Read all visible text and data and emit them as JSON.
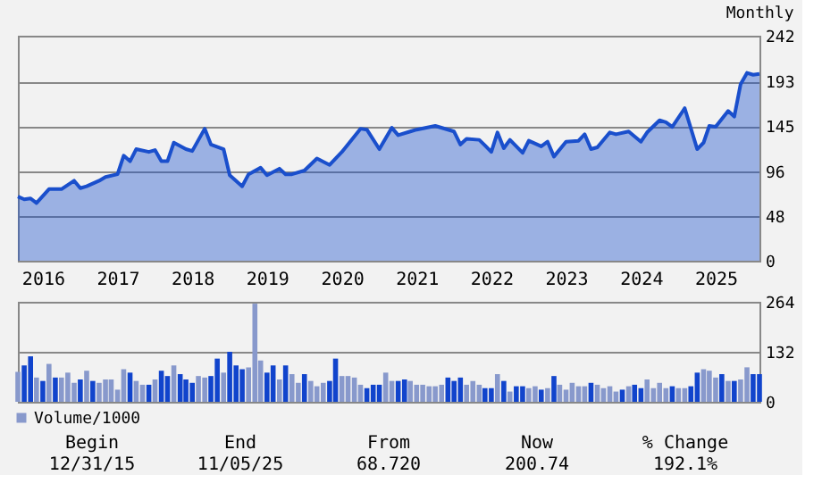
{
  "chart_data": [
    {
      "type": "area",
      "subtitle": "Monthly",
      "x": [
        "2015-12",
        "2016-01",
        "2016-02",
        "2016-03",
        "2016-05",
        "2016-07",
        "2016-09",
        "2016-10",
        "2016-11",
        "2017-01",
        "2017-02",
        "2017-04",
        "2017-05",
        "2017-06",
        "2017-07",
        "2017-09",
        "2017-10",
        "2017-11",
        "2017-12",
        "2018-01",
        "2018-03",
        "2018-04",
        "2018-06",
        "2018-07",
        "2018-09",
        "2018-10",
        "2018-12",
        "2019-01",
        "2019-03",
        "2019-04",
        "2019-06",
        "2019-07",
        "2019-08",
        "2019-10",
        "2019-12",
        "2020-02",
        "2020-04",
        "2020-07",
        "2020-08",
        "2020-10",
        "2020-12",
        "2021-01",
        "2021-03",
        "2021-04",
        "2021-07",
        "2021-10",
        "2021-11",
        "2021-12",
        "2022-02",
        "2022-03",
        "2022-04",
        "2022-05",
        "2022-06",
        "2022-07",
        "2022-09",
        "2022-10",
        "2022-12",
        "2023-01",
        "2023-02",
        "2023-04",
        "2023-06",
        "2023-07",
        "2023-08",
        "2023-09",
        "2023-11",
        "2023-12",
        "2024-02",
        "2024-04",
        "2024-05",
        "2024-07",
        "2024-08",
        "2024-09",
        "2024-11",
        "2025-01",
        "2025-02",
        "2025-03",
        "2025-04",
        "2025-06",
        "2025-07",
        "2025-08",
        "2025-09",
        "2025-10",
        "2025-11"
      ],
      "series": [
        {
          "color": "#1a4fcc",
          "values": [
            69,
            66,
            67,
            62,
            77,
            77,
            86,
            78,
            80,
            86,
            90,
            93,
            113,
            107,
            120,
            117,
            119,
            107,
            107,
            127,
            120,
            118,
            142,
            125,
            120,
            92,
            80,
            93,
            100,
            92,
            99,
            93,
            93,
            97,
            110,
            103,
            117,
            142,
            141,
            120,
            143,
            135,
            139,
            141,
            145,
            139,
            125,
            131,
            130,
            124,
            117,
            138,
            121,
            130,
            116,
            129,
            123,
            128,
            112,
            128,
            129,
            136,
            120,
            122,
            138,
            136,
            139,
            128,
            138,
            151,
            149,
            144,
            164,
            120,
            127,
            145,
            144,
            161,
            155,
            190,
            202,
            200,
            201
          ]
        }
      ],
      "xlim": [
        "2015-12",
        "2025-11"
      ],
      "xticks": [
        {
          "value": "2016-04",
          "label": "2016"
        },
        {
          "value": "2017-04",
          "label": "2017"
        },
        {
          "value": "2018-04",
          "label": "2018"
        },
        {
          "value": "2019-04",
          "label": "2019"
        },
        {
          "value": "2020-04",
          "label": "2020"
        },
        {
          "value": "2021-04",
          "label": "2021"
        },
        {
          "value": "2022-04",
          "label": "2022"
        },
        {
          "value": "2023-04",
          "label": "2023"
        },
        {
          "value": "2024-04",
          "label": "2024"
        },
        {
          "value": "2025-04",
          "label": "2025"
        }
      ],
      "ylim": [
        0,
        242
      ],
      "yticks": [
        0,
        48,
        96,
        145,
        193,
        242
      ],
      "grid": "y"
    },
    {
      "type": "bar",
      "xlim": [
        "2015-12",
        "2025-11"
      ],
      "ylim": [
        0,
        264
      ],
      "yticks": [
        0,
        132,
        264
      ],
      "grid": "y",
      "tick_labels": "y",
      "legend": "bottom left",
      "x": [
        "2015-12",
        "2016-01",
        "2016-02",
        "2016-03",
        "2016-04",
        "2016-05",
        "2016-06",
        "2016-07",
        "2016-08",
        "2016-09",
        "2016-10",
        "2016-11",
        "2016-12",
        "2017-01",
        "2017-02",
        "2017-03",
        "2017-04",
        "2017-05",
        "2017-06",
        "2017-07",
        "2017-08",
        "2017-09",
        "2017-10",
        "2017-11",
        "2017-12",
        "2018-01",
        "2018-02",
        "2018-03",
        "2018-04",
        "2018-05",
        "2018-06",
        "2018-07",
        "2018-08",
        "2018-09",
        "2018-10",
        "2018-11",
        "2018-12",
        "2019-01",
        "2019-02",
        "2019-03",
        "2019-04",
        "2019-05",
        "2019-06",
        "2019-07",
        "2019-08",
        "2019-09",
        "2019-10",
        "2019-11",
        "2019-12",
        "2020-01",
        "2020-02",
        "2020-03",
        "2020-04",
        "2020-05",
        "2020-06",
        "2020-07",
        "2020-08",
        "2020-09",
        "2020-10",
        "2020-11",
        "2020-12",
        "2021-01",
        "2021-02",
        "2021-03",
        "2021-04",
        "2021-05",
        "2021-06",
        "2021-07",
        "2021-08",
        "2021-09",
        "2021-10",
        "2021-11",
        "2021-12",
        "2022-01",
        "2022-02",
        "2022-03",
        "2022-04",
        "2022-05",
        "2022-06",
        "2022-07",
        "2022-08",
        "2022-09",
        "2022-10",
        "2022-11",
        "2022-12",
        "2023-01",
        "2023-02",
        "2023-03",
        "2023-04",
        "2023-05",
        "2023-06",
        "2023-07",
        "2023-08",
        "2023-09",
        "2023-10",
        "2023-11",
        "2023-12",
        "2024-01",
        "2024-02",
        "2024-03",
        "2024-04",
        "2024-05",
        "2024-06",
        "2024-07",
        "2024-08",
        "2024-09",
        "2024-10",
        "2024-11",
        "2024-12",
        "2025-01",
        "2025-02",
        "2025-03",
        "2025-04",
        "2025-05",
        "2025-06",
        "2025-07",
        "2025-08",
        "2025-09",
        "2025-10",
        "2025-11"
      ],
      "series": [
        {
          "name": "Volume/1000",
          "color": "#8899cc",
          "values": [
            79,
            96,
            120,
            64,
            55,
            100,
            64,
            64,
            77,
            50,
            59,
            82,
            55,
            50,
            59,
            59,
            32,
            86,
            77,
            55,
            45,
            45,
            59,
            82,
            68,
            96,
            73,
            59,
            50,
            68,
            64,
            68,
            114,
            77,
            132,
            96,
            86,
            91,
            259,
            109,
            77,
            96,
            59,
            96,
            73,
            50,
            73,
            55,
            41,
            50,
            55,
            114,
            68,
            68,
            64,
            45,
            36,
            45,
            45,
            77,
            55,
            55,
            59,
            55,
            45,
            45,
            41,
            41,
            45,
            64,
            55,
            64,
            45,
            55,
            45,
            36,
            36,
            73,
            55,
            27,
            41,
            41,
            36,
            41,
            32,
            36,
            68,
            45,
            32,
            50,
            41,
            41,
            50,
            45,
            36,
            41,
            27,
            32,
            41,
            45,
            36,
            59,
            36,
            50,
            36,
            41,
            36,
            36,
            41,
            77,
            86,
            82,
            64,
            73,
            55,
            55,
            59,
            91,
            73,
            73
          ],
          "colors": [
            "#8899cc",
            "#1144cc",
            "#1144cc",
            "#8899cc",
            "#1144cc",
            "#8899cc",
            "#1144cc",
            "#8899cc",
            "#8899cc",
            "#8899cc",
            "#1144cc",
            "#8899cc",
            "#1144cc",
            "#8899cc",
            "#8899cc",
            "#8899cc",
            "#8899cc",
            "#8899cc",
            "#1144cc",
            "#8899cc",
            "#8899cc",
            "#1144cc",
            "#8899cc",
            "#1144cc",
            "#1144cc",
            "#8899cc",
            "#1144cc",
            "#1144cc",
            "#1144cc",
            "#8899cc",
            "#8899cc",
            "#1144cc",
            "#1144cc",
            "#8899cc",
            "#1144cc",
            "#1144cc",
            "#1144cc",
            "#8899cc",
            "#8899cc",
            "#8899cc",
            "#1144cc",
            "#1144cc",
            "#8899cc",
            "#1144cc",
            "#8899cc",
            "#8899cc",
            "#1144cc",
            "#8899cc",
            "#8899cc",
            "#8899cc",
            "#1144cc",
            "#1144cc",
            "#8899cc",
            "#8899cc",
            "#8899cc",
            "#8899cc",
            "#1144cc",
            "#1144cc",
            "#1144cc",
            "#8899cc",
            "#8899cc",
            "#1144cc",
            "#1144cc",
            "#8899cc",
            "#8899cc",
            "#8899cc",
            "#8899cc",
            "#8899cc",
            "#8899cc",
            "#1144cc",
            "#1144cc",
            "#1144cc",
            "#8899cc",
            "#8899cc",
            "#8899cc",
            "#1144cc",
            "#1144cc",
            "#8899cc",
            "#1144cc",
            "#8899cc",
            "#1144cc",
            "#1144cc",
            "#8899cc",
            "#8899cc",
            "#1144cc",
            "#8899cc",
            "#1144cc",
            "#8899cc",
            "#8899cc",
            "#8899cc",
            "#8899cc",
            "#8899cc",
            "#1144cc",
            "#8899cc",
            "#8899cc",
            "#8899cc",
            "#8899cc",
            "#1144cc",
            "#8899cc",
            "#1144cc",
            "#1144cc",
            "#8899cc",
            "#8899cc",
            "#8899cc",
            "#8899cc",
            "#1144cc",
            "#8899cc",
            "#8899cc",
            "#1144cc",
            "#1144cc",
            "#8899cc",
            "#8899cc",
            "#8899cc",
            "#1144cc",
            "#8899cc",
            "#1144cc",
            "#8899cc",
            "#8899cc",
            "#1144cc",
            "#1144cc"
          ]
        }
      ],
      "annotations": [
        "Begin",
        "12/31/15",
        "End",
        "11/05/25",
        "From",
        "68.720",
        "Now",
        "200.74",
        "% Change",
        "192.1%"
      ]
    }
  ]
}
